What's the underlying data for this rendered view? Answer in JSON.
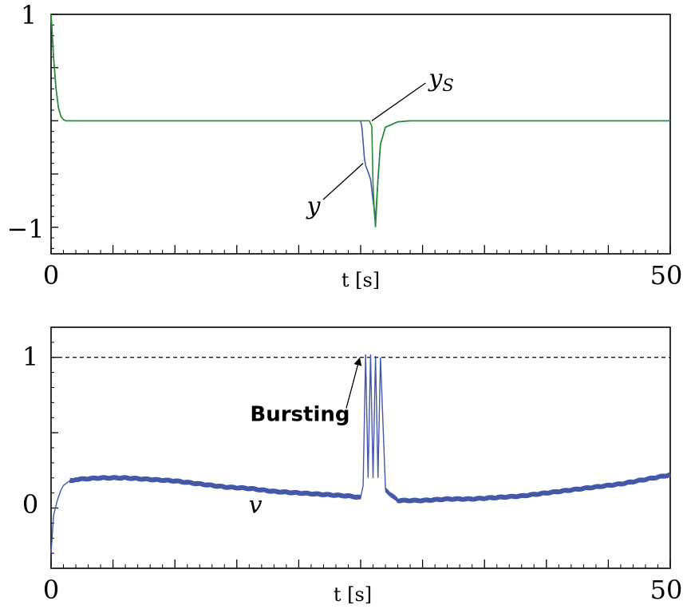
{
  "chart_data": [
    {
      "type": "line",
      "title": "",
      "xlabel": "t [s]",
      "ylabel": "",
      "xlim": [
        0,
        50
      ],
      "ylim": [
        -1.25,
        1
      ],
      "x_tick_labels": [
        "0",
        "50"
      ],
      "y_tick_labels": [
        "1",
        "−1"
      ],
      "y_major_ticks": [
        1,
        0.5,
        0,
        -0.5,
        -1
      ],
      "grid": false,
      "colors": {
        "y": "#4457a8",
        "y_S": "#2a8a32"
      },
      "series": [
        {
          "name": "y",
          "x": [
            0,
            0.2,
            0.4,
            0.6,
            0.8,
            1.0,
            1.2,
            25.0,
            25.1,
            25.2,
            25.3,
            25.4,
            25.6,
            25.8,
            26.0,
            26.2,
            26.4,
            26.6,
            27.0,
            28.0,
            29.0,
            30,
            50
          ],
          "y": [
            1,
            0.6,
            0.3,
            0.12,
            0.04,
            0.01,
            0,
            0,
            -0.06,
            -0.2,
            -0.35,
            -0.42,
            -0.48,
            -0.55,
            -0.75,
            -0.92,
            -0.55,
            -0.22,
            -0.06,
            -0.01,
            0,
            0,
            0
          ]
        },
        {
          "name": "y_S",
          "x": [
            0,
            0.2,
            0.4,
            0.6,
            0.8,
            1.0,
            1.2,
            25.7,
            25.9,
            26.0,
            26.1,
            26.2,
            26.4,
            26.6,
            27.0,
            28.0,
            29.0,
            30,
            50
          ],
          "y": [
            1,
            0.6,
            0.3,
            0.12,
            0.04,
            0.01,
            0,
            0,
            -0.05,
            -0.6,
            -0.85,
            -1.0,
            -0.55,
            -0.22,
            -0.06,
            -0.01,
            0,
            0,
            0
          ]
        }
      ],
      "annotations": [
        {
          "text": "y",
          "x": 21.2,
          "y": -0.8,
          "arrow_to": [
            25.2,
            -0.4
          ]
        },
        {
          "text": "y",
          "subscript": "S",
          "x": 30.5,
          "y": 0.4,
          "arrow_to": [
            25.9,
            0
          ]
        }
      ]
    },
    {
      "type": "line",
      "title": "",
      "xlabel": "t [s]",
      "ylabel": "",
      "xlim": [
        0,
        50
      ],
      "ylim": [
        -0.4,
        1.2
      ],
      "x_tick_labels": [
        "0",
        "50"
      ],
      "y_tick_labels": [
        "1",
        "0"
      ],
      "y_major_ticks": [
        1,
        0.5,
        0
      ],
      "grid": false,
      "threshold": {
        "y": 1,
        "style": "dashed",
        "color": "#000000"
      },
      "colors": {
        "v": "#4457a8"
      },
      "series": [
        {
          "name": "v",
          "x": [
            0,
            0.2,
            0.5,
            0.8,
            1,
            1.5,
            2,
            4,
            6,
            8,
            10,
            12,
            14,
            16,
            18,
            20,
            22,
            24,
            25,
            25.2,
            25.4,
            25.6,
            25.8,
            26,
            26.2,
            26.4,
            26.6,
            27,
            28,
            30,
            32,
            34,
            36,
            38,
            40,
            42,
            44,
            46,
            48,
            50
          ],
          "y": [
            -0.3,
            -0.05,
            0.05,
            0.12,
            0.15,
            0.18,
            0.19,
            0.2,
            0.2,
            0.19,
            0.18,
            0.16,
            0.14,
            0.13,
            0.11,
            0.1,
            0.09,
            0.08,
            0.07,
            0.15,
            1.02,
            0.2,
            1.02,
            0.2,
            1.01,
            0.2,
            1.0,
            0.12,
            0.05,
            0.05,
            0.06,
            0.06,
            0.07,
            0.08,
            0.1,
            0.12,
            0.14,
            0.16,
            0.19,
            0.22
          ]
        }
      ],
      "annotations": [
        {
          "text": "v",
          "x": 16.5,
          "y": 0.0
        },
        {
          "text": "Bursting",
          "x": 20.1,
          "y": 0.63,
          "arrow_to": [
            24.9,
            0.99
          ]
        }
      ]
    }
  ]
}
